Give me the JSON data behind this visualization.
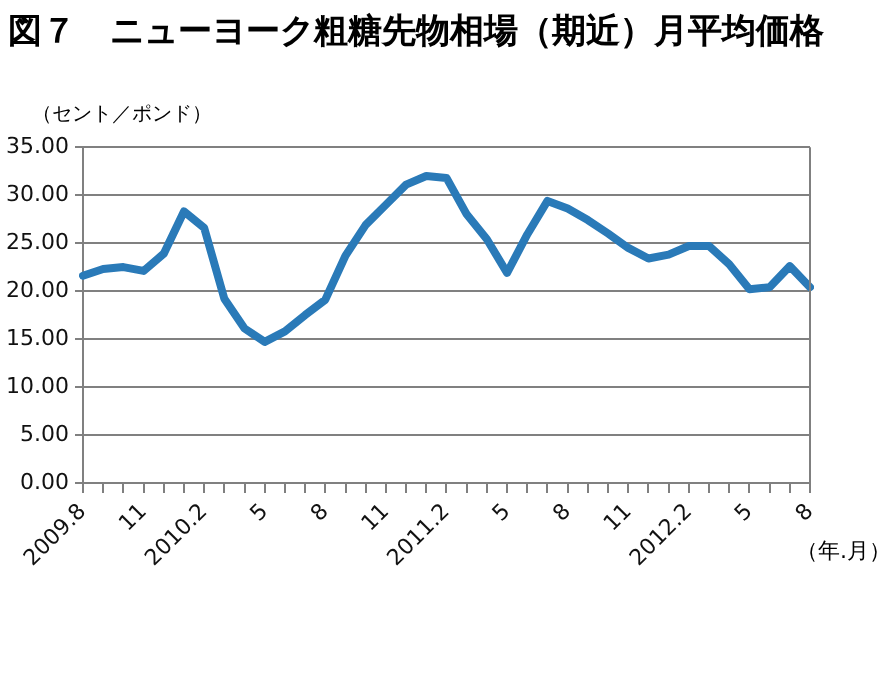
{
  "chart_data": {
    "type": "line",
    "title": "図７　ニューヨーク粗糖先物相場（期近）月平均価格",
    "ylabel": "（セント／ポンド）",
    "xlabel": "（年.月）",
    "categories": [
      "2009.8",
      null,
      null,
      "11",
      null,
      null,
      "2010.2",
      null,
      null,
      "5",
      null,
      null,
      "8",
      null,
      null,
      "11",
      null,
      null,
      "2011.2",
      null,
      null,
      "5",
      null,
      null,
      "8",
      null,
      null,
      "11",
      null,
      null,
      "2012.2",
      null,
      null,
      "5",
      null,
      null,
      "8"
    ],
    "series": [
      {
        "color": "#2a7ab8",
        "values": [
          21.6,
          22.3,
          22.5,
          22.1,
          23.9,
          28.3,
          26.6,
          19.2,
          16.1,
          14.7,
          15.8,
          17.5,
          19.1,
          23.7,
          26.9,
          29.0,
          31.1,
          32.0,
          31.8,
          28.0,
          25.4,
          21.9,
          25.9,
          29.4,
          28.6,
          27.4,
          26.0,
          24.5,
          23.4,
          23.8,
          24.7,
          24.7,
          22.8,
          20.2,
          20.4,
          22.6,
          20.4
        ]
      }
    ],
    "ylim": [
      0,
      35
    ],
    "yticks": [
      {
        "value": 0,
        "label": "0.00"
      },
      {
        "value": 5,
        "label": "5.00"
      },
      {
        "value": 10,
        "label": "10.00"
      },
      {
        "value": 15,
        "label": "15.00"
      },
      {
        "value": 20,
        "label": "20.00"
      },
      {
        "value": 25,
        "label": "25.00"
      },
      {
        "value": 30,
        "label": "30.00"
      },
      {
        "value": 35,
        "label": "35.00"
      }
    ],
    "grid": "y",
    "legend": false,
    "marker": "none",
    "line_style": "solid"
  }
}
